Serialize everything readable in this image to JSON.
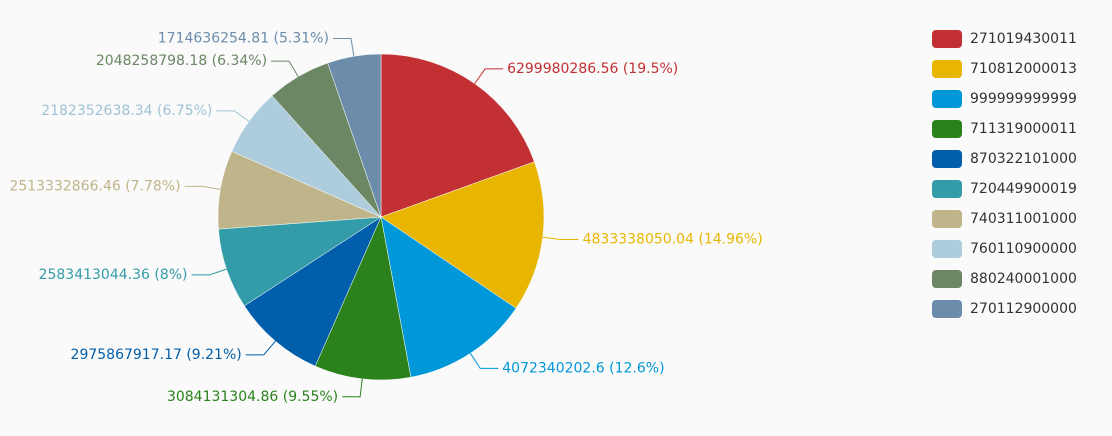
{
  "chart_data": {
    "type": "pie",
    "categories": [
      "271019430011",
      "710812000013",
      "999999999999",
      "711319000011",
      "870322101000",
      "720449900019",
      "740311001000",
      "760110900000",
      "880240001000",
      "270112900000"
    ],
    "values": [
      6299980286.56,
      4833338050.04,
      4072340202.6,
      3084131304.86,
      2975867917.17,
      2583413044.36,
      2513332866.46,
      2182352638.34,
      2048258798.18,
      1714636254.81
    ],
    "value_labels": [
      "6299980286.56 (19.5%)",
      "4833338050.04 (14.96%)",
      "4072340202.6 (12.6%)",
      "3084131304.86 (9.55%)",
      "2975867917.17 (9.21%)",
      "2583413044.36 (8%)",
      "2513332866.46 (7.78%)",
      "2182352638.34 (6.75%)",
      "2048258798.18 (6.34%)",
      "1714636254.81 (5.31%)"
    ],
    "colors": [
      "#c23034",
      "#e8b600",
      "#0098d9",
      "#2b821d",
      "#005eaa",
      "#339ca8",
      "#c0b58a",
      "#aecddc",
      "#6b8764",
      "#6b8dab"
    ],
    "legend": "right"
  }
}
